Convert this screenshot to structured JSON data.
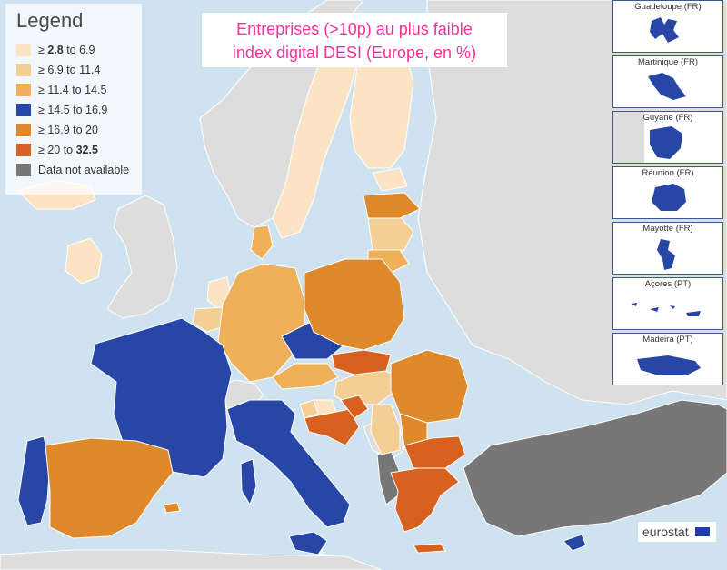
{
  "title": {
    "line1": "Entreprises (>10p) au plus faible",
    "line2": "index digital DESI (Europe, en %)"
  },
  "legend": {
    "title": "Legend",
    "items": [
      {
        "prefix": "≥ ",
        "bold": "2.8",
        "suffix": " to 6.9",
        "color": "#fbe3c4"
      },
      {
        "prefix": "≥ 6.9 to 11.4",
        "bold": "",
        "suffix": "",
        "color": "#f4cf95"
      },
      {
        "prefix": "≥ 11.4 to 14.5",
        "bold": "",
        "suffix": "",
        "color": "#eeb15a"
      },
      {
        "prefix": "≥ 14.5 to 16.9",
        "bold": "",
        "suffix": "",
        "color": "#2746a5"
      },
      {
        "prefix": "≥ 16.9 to 20",
        "bold": "",
        "suffix": "",
        "color": "#de8a2b"
      },
      {
        "prefix": "≥ 20 to ",
        "bold": "32.5",
        "suffix": "",
        "color": "#d8611f"
      },
      {
        "prefix": "Data not available",
        "bold": "",
        "suffix": "",
        "color": "#777777"
      }
    ]
  },
  "insets": [
    {
      "label": "Guadeloupe (FR)"
    },
    {
      "label": "Martinique (FR)"
    },
    {
      "label": "Guyane (FR)"
    },
    {
      "label": "Réunion (FR)"
    },
    {
      "label": "Mayotte (FR)"
    },
    {
      "label": "Açores (PT)"
    },
    {
      "label": "Madeira (PT)"
    }
  ],
  "source": {
    "name": "eurostat"
  },
  "colors": {
    "sea": "#cfe2ef",
    "non_eu_land": "#dddddd",
    "no_data": "#777777",
    "class_1": "#fbe3c4",
    "class_2": "#f4cf95",
    "class_3": "#eeb15a",
    "class_4": "#2746a5",
    "class_5": "#de8a2b",
    "class_6": "#d8611f",
    "title_text": "#ff2f9a"
  }
}
